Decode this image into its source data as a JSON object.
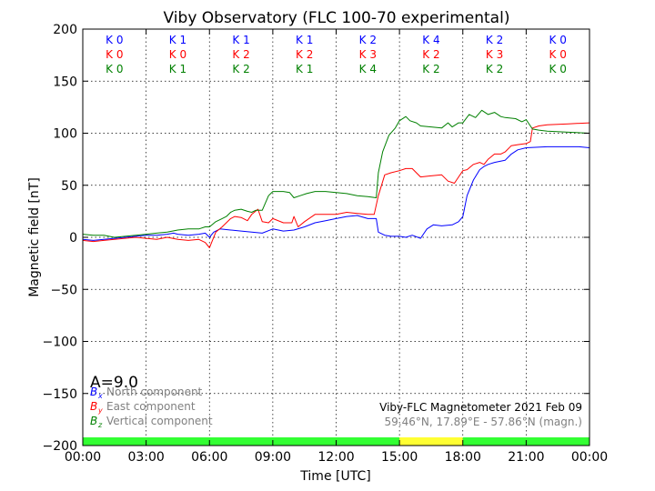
{
  "chart_data": {
    "type": "line",
    "title": "Viby Observatory (FLC 100-70 experimental)",
    "xlabel": "Time [UTC]",
    "ylabel": "Magnetic field [nT]",
    "xlim": [
      0,
      24
    ],
    "ylim": [
      -200,
      200
    ],
    "x_ticks": [
      0,
      3,
      6,
      9,
      12,
      15,
      18,
      21,
      24
    ],
    "x_tick_labels": [
      "00:00",
      "03:00",
      "06:00",
      "09:00",
      "12:00",
      "15:00",
      "18:00",
      "21:00",
      "00:00"
    ],
    "y_ticks": [
      -200,
      -150,
      -100,
      -50,
      0,
      50,
      100,
      150,
      200
    ],
    "y_tick_labels": [
      "−200",
      "−150",
      "−100",
      "−50",
      "0",
      "50",
      "100",
      "150",
      "200"
    ],
    "grid": true,
    "k_index": {
      "blue": [
        "K 0",
        "K 1",
        "K 1",
        "K 1",
        "K 2",
        "K 4",
        "K 2",
        "K 0"
      ],
      "red": [
        "K 0",
        "K 0",
        "K 2",
        "K 2",
        "K 3",
        "K 2",
        "K 3",
        "K 0"
      ],
      "green": [
        "K 0",
        "K 1",
        "K 2",
        "K 1",
        "K 4",
        "K 2",
        "K 2",
        "K 0"
      ]
    },
    "a_index": "A=9.0",
    "legend": {
      "placement": "lower-left",
      "entries": [
        {
          "symbol": "B",
          "sub": "x",
          "label": "North component",
          "color": "#0000ff"
        },
        {
          "symbol": "B",
          "sub": "y",
          "label": "East component",
          "color": "#ff0000"
        },
        {
          "symbol": "B",
          "sub": "z",
          "label": "Vertical component",
          "color": "#008000"
        }
      ]
    },
    "annotation": {
      "line1": "Viby-FLC Magnetometer 2021 Feb 09",
      "line2": "59.46°N, 17.89°E - 57.86°N (magn.)"
    },
    "status_bar": [
      {
        "from": 0,
        "to": 15,
        "color": "#33ff33"
      },
      {
        "from": 15,
        "to": 18,
        "color": "#ffff33"
      },
      {
        "from": 18,
        "to": 24,
        "color": "#33ff33"
      }
    ],
    "series": [
      {
        "color": "#0000ff",
        "points": [
          [
            0,
            -2
          ],
          [
            0.5,
            -3
          ],
          [
            1,
            -2
          ],
          [
            1.5,
            -1
          ],
          [
            2,
            0
          ],
          [
            2.5,
            1
          ],
          [
            3,
            2
          ],
          [
            3.5,
            2
          ],
          [
            4,
            3
          ],
          [
            4.3,
            4
          ],
          [
            4.5,
            3
          ],
          [
            5,
            2
          ],
          [
            5.5,
            3
          ],
          [
            5.8,
            4
          ],
          [
            6,
            0
          ],
          [
            6.2,
            5
          ],
          [
            6.5,
            8
          ],
          [
            7,
            7
          ],
          [
            7.5,
            6
          ],
          [
            8,
            5
          ],
          [
            8.5,
            4
          ],
          [
            9,
            8
          ],
          [
            9.5,
            6
          ],
          [
            10,
            7
          ],
          [
            10.5,
            10
          ],
          [
            11,
            14
          ],
          [
            11.5,
            16
          ],
          [
            12,
            18
          ],
          [
            12.5,
            20
          ],
          [
            13,
            21
          ],
          [
            13.5,
            18
          ],
          [
            13.9,
            18
          ],
          [
            14,
            5
          ],
          [
            14.3,
            2
          ],
          [
            14.6,
            1
          ],
          [
            15,
            1
          ],
          [
            15.3,
            0
          ],
          [
            15.6,
            2
          ],
          [
            16,
            -1
          ],
          [
            16.3,
            8
          ],
          [
            16.6,
            12
          ],
          [
            17,
            11
          ],
          [
            17.5,
            12
          ],
          [
            17.8,
            15
          ],
          [
            18,
            20
          ],
          [
            18.2,
            40
          ],
          [
            18.5,
            55
          ],
          [
            18.8,
            65
          ],
          [
            19,
            68
          ],
          [
            19.2,
            70
          ],
          [
            19.5,
            72
          ],
          [
            20,
            74
          ],
          [
            20.3,
            80
          ],
          [
            20.6,
            84
          ],
          [
            21,
            86
          ],
          [
            22,
            87
          ],
          [
            23,
            87
          ],
          [
            23.5,
            87
          ],
          [
            24,
            86
          ]
        ]
      },
      {
        "color": "#ff0000",
        "points": [
          [
            0,
            -3
          ],
          [
            0.5,
            -4
          ],
          [
            1,
            -3
          ],
          [
            1.5,
            -2
          ],
          [
            2,
            -1
          ],
          [
            2.5,
            0
          ],
          [
            3,
            -1
          ],
          [
            3.5,
            -2
          ],
          [
            4,
            0
          ],
          [
            4.5,
            -2
          ],
          [
            5,
            -3
          ],
          [
            5.5,
            -2
          ],
          [
            5.8,
            -5
          ],
          [
            6,
            -10
          ],
          [
            6.1,
            -5
          ],
          [
            6.3,
            5
          ],
          [
            6.6,
            10
          ],
          [
            6.8,
            14
          ],
          [
            7,
            18
          ],
          [
            7.2,
            20
          ],
          [
            7.5,
            19
          ],
          [
            7.8,
            16
          ],
          [
            8,
            22
          ],
          [
            8.3,
            27
          ],
          [
            8.5,
            15
          ],
          [
            8.8,
            14
          ],
          [
            9,
            18
          ],
          [
            9.5,
            14
          ],
          [
            9.9,
            14
          ],
          [
            10,
            20
          ],
          [
            10.2,
            10
          ],
          [
            10.5,
            15
          ],
          [
            11,
            22
          ],
          [
            11.5,
            22
          ],
          [
            12,
            22
          ],
          [
            12.5,
            24
          ],
          [
            13,
            23
          ],
          [
            13.5,
            22
          ],
          [
            13.8,
            22
          ],
          [
            14,
            40
          ],
          [
            14.3,
            60
          ],
          [
            14.6,
            62
          ],
          [
            15,
            64
          ],
          [
            15.3,
            66
          ],
          [
            15.6,
            66
          ],
          [
            16,
            58
          ],
          [
            16.5,
            59
          ],
          [
            17,
            60
          ],
          [
            17.3,
            54
          ],
          [
            17.6,
            52
          ],
          [
            17.8,
            58
          ],
          [
            18,
            64
          ],
          [
            18.2,
            65
          ],
          [
            18.5,
            70
          ],
          [
            18.8,
            72
          ],
          [
            19,
            70
          ],
          [
            19.2,
            75
          ],
          [
            19.5,
            80
          ],
          [
            19.8,
            80
          ],
          [
            20,
            82
          ],
          [
            20.3,
            88
          ],
          [
            20.6,
            89
          ],
          [
            21,
            90
          ],
          [
            21.2,
            92
          ],
          [
            21.3,
            105
          ],
          [
            21.6,
            107
          ],
          [
            22,
            108
          ],
          [
            23,
            109
          ],
          [
            24,
            110
          ]
        ]
      },
      {
        "color": "#008000",
        "points": [
          [
            0,
            3
          ],
          [
            0.5,
            2
          ],
          [
            1,
            2
          ],
          [
            1.5,
            0
          ],
          [
            2,
            1
          ],
          [
            2.5,
            2
          ],
          [
            3,
            3
          ],
          [
            3.5,
            4
          ],
          [
            4,
            5
          ],
          [
            4.5,
            7
          ],
          [
            5,
            8
          ],
          [
            5.5,
            8
          ],
          [
            5.8,
            10
          ],
          [
            6,
            10
          ],
          [
            6.3,
            15
          ],
          [
            6.6,
            18
          ],
          [
            6.8,
            20
          ],
          [
            7,
            24
          ],
          [
            7.2,
            26
          ],
          [
            7.5,
            27
          ],
          [
            7.8,
            25
          ],
          [
            8,
            24
          ],
          [
            8.2,
            26
          ],
          [
            8.5,
            26
          ],
          [
            8.8,
            40
          ],
          [
            9,
            44
          ],
          [
            9.5,
            44
          ],
          [
            9.8,
            43
          ],
          [
            10,
            38
          ],
          [
            10.3,
            40
          ],
          [
            10.6,
            42
          ],
          [
            11,
            44
          ],
          [
            11.5,
            44
          ],
          [
            12,
            43
          ],
          [
            12.5,
            42
          ],
          [
            13,
            40
          ],
          [
            13.5,
            39
          ],
          [
            13.9,
            38
          ],
          [
            14,
            62
          ],
          [
            14.2,
            82
          ],
          [
            14.5,
            98
          ],
          [
            14.8,
            105
          ],
          [
            15,
            112
          ],
          [
            15.3,
            116
          ],
          [
            15.5,
            112
          ],
          [
            15.8,
            110
          ],
          [
            16,
            107
          ],
          [
            16.5,
            106
          ],
          [
            17,
            105
          ],
          [
            17.3,
            110
          ],
          [
            17.5,
            106
          ],
          [
            17.8,
            110
          ],
          [
            18,
            110
          ],
          [
            18.3,
            118
          ],
          [
            18.6,
            115
          ],
          [
            18.9,
            122
          ],
          [
            19.2,
            118
          ],
          [
            19.5,
            120
          ],
          [
            19.8,
            116
          ],
          [
            20,
            115
          ],
          [
            20.5,
            114
          ],
          [
            20.8,
            111
          ],
          [
            21,
            113
          ],
          [
            21.3,
            104
          ],
          [
            21.6,
            103
          ],
          [
            22,
            102
          ],
          [
            23,
            101
          ],
          [
            24,
            100
          ]
        ]
      }
    ]
  }
}
